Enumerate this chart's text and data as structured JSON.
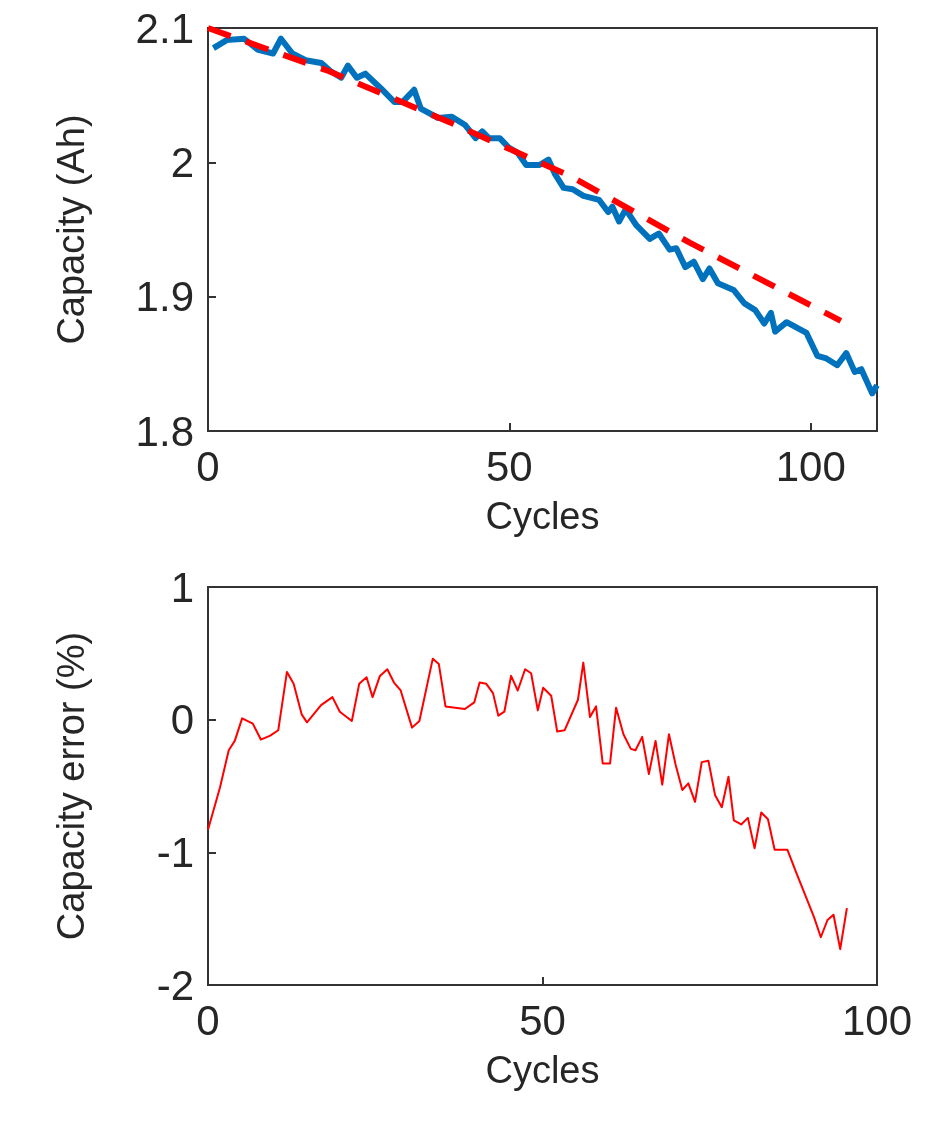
{
  "chart_data": [
    {
      "type": "line",
      "xlabel": "Cycles",
      "ylabel": "Capacity (Ah)",
      "xlim": [
        0,
        111
      ],
      "xticks": [
        0,
        50,
        100
      ],
      "ylim": [
        1.8,
        2.1
      ],
      "yticks": [
        1.8,
        1.9,
        2,
        2.1
      ],
      "grid": false,
      "series": [
        {
          "color": "#0072bd",
          "line_style": "solid",
          "x": [
            0.9,
            3.1,
            6,
            8.2,
            10.8,
            12.1,
            14,
            16.2,
            18.8,
            20.3,
            22.1,
            23.2,
            24.7,
            26.1,
            28.7,
            30.9,
            32.3,
            34.2,
            35.3,
            38.2,
            40.4,
            42.6,
            44.4,
            45.5,
            46.6,
            48.4,
            49.9,
            51.4,
            52.8,
            55,
            56.5,
            57.6,
            59,
            60.5,
            62.3,
            64.9,
            66.4,
            67.1,
            68.2,
            69.3,
            71.1,
            73.3,
            74.8,
            76.6,
            77.7,
            79.2,
            80.6,
            82.1,
            83.2,
            84.6,
            87.2,
            89,
            90.8,
            92.3,
            93.4,
            94.1,
            96,
            99.3,
            101.1,
            102.6,
            104.4,
            105.9,
            107.3,
            108.4,
            110.2,
            111
          ],
          "values": [
            2.085,
            2.091,
            2.092,
            2.084,
            2.081,
            2.092,
            2.081,
            2.076,
            2.074,
            2.068,
            2.063,
            2.072,
            2.063,
            2.066,
            2.055,
            2.045,
            2.045,
            2.054,
            2.04,
            2.033,
            2.034,
            2.028,
            2.018,
            2.023,
            2.018,
            2.018,
            2.011,
            2.007,
            1.998,
            1.998,
            2.002,
            1.991,
            1.981,
            1.98,
            1.975,
            1.972,
            1.963,
            1.967,
            1.956,
            1.965,
            1.953,
            1.943,
            1.947,
            1.935,
            1.936,
            1.922,
            1.926,
            1.913,
            1.921,
            1.91,
            1.905,
            1.895,
            1.89,
            1.88,
            1.888,
            1.874,
            1.881,
            1.873,
            1.856,
            1.854,
            1.849,
            1.858,
            1.844,
            1.846,
            1.828,
            1.834
          ]
        },
        {
          "color": "#ff0000",
          "line_style": "dashed",
          "x": [
            0,
            20,
            40,
            60,
            80,
            105
          ],
          "values": [
            2.1,
            2.068,
            2.03,
            1.99,
            1.94,
            1.882
          ]
        }
      ]
    },
    {
      "type": "line",
      "xlabel": "Cycles",
      "ylabel": "Capacity error (%)",
      "xlim": [
        0,
        100
      ],
      "xticks": [
        0,
        50,
        100
      ],
      "ylim": [
        -2,
        1
      ],
      "yticks": [
        -2,
        -1,
        0,
        1
      ],
      "grid": false,
      "series": [
        {
          "color": "#ff0000",
          "line_style": "solid",
          "x": [
            0,
            1.8,
            3.1,
            4,
            5.1,
            6.7,
            7.9,
            9.3,
            10.5,
            11.8,
            12.8,
            14,
            14.8,
            16.9,
            18.6,
            19.7,
            21.5,
            22.6,
            23.7,
            24.6,
            25.7,
            26.8,
            27.8,
            28.8,
            30.5,
            31.6,
            33.6,
            34.5,
            35.5,
            38.4,
            39.8,
            40.6,
            41.6,
            42.6,
            43.4,
            44.3,
            45.3,
            46.3,
            47.4,
            48.3,
            49.3,
            50.1,
            51.3,
            52.2,
            53.3,
            55.3,
            56.1,
            57.1,
            58,
            59,
            60.1,
            61,
            62.1,
            63.2,
            63.9,
            64.9,
            65.9,
            66.9,
            67.9,
            68.9,
            69.9,
            70.9,
            71.8,
            72.8,
            73.8,
            74.8,
            75.8,
            76.8,
            77.8,
            78.6,
            79.7,
            80.7,
            81.7,
            82.7,
            83.7,
            84.7,
            86.6,
            87.9,
            90.6,
            91.6,
            92.6,
            93.5,
            94.5,
            95.5
          ],
          "values": [
            -0.83,
            -0.51,
            -0.23,
            -0.16,
            0.01,
            -0.03,
            -0.15,
            -0.12,
            -0.08,
            0.36,
            0.27,
            0.04,
            -0.02,
            0.11,
            0.17,
            0.06,
            -0.01,
            0.27,
            0.32,
            0.17,
            0.33,
            0.38,
            0.28,
            0.22,
            -0.06,
            -0.01,
            0.46,
            0.42,
            0.1,
            0.08,
            0.13,
            0.28,
            0.27,
            0.2,
            0.03,
            0.06,
            0.33,
            0.22,
            0.38,
            0.35,
            0.07,
            0.24,
            0.18,
            -0.09,
            -0.08,
            0.15,
            0.43,
            0.02,
            0.1,
            -0.33,
            -0.33,
            0.09,
            -0.11,
            -0.22,
            -0.23,
            -0.13,
            -0.41,
            -0.16,
            -0.49,
            -0.11,
            -0.34,
            -0.53,
            -0.48,
            -0.62,
            -0.32,
            -0.31,
            -0.57,
            -0.66,
            -0.43,
            -0.76,
            -0.79,
            -0.74,
            -0.97,
            -0.7,
            -0.75,
            -0.98,
            -0.98,
            -1.15,
            -1.49,
            -1.64,
            -1.51,
            -1.47,
            -1.73,
            -1.42
          ]
        }
      ]
    }
  ]
}
